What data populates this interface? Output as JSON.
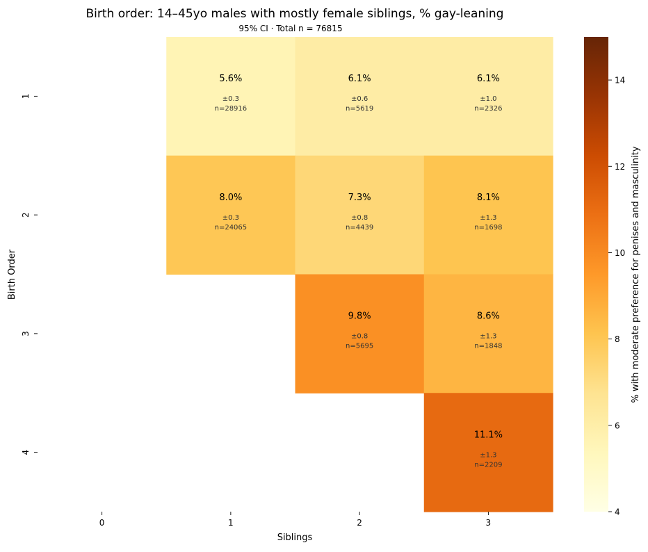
{
  "chart_data": {
    "type": "heatmap",
    "title": "Birth order: 14–45yo males with mostly female siblings, % gay-leaning",
    "subtitle": "95% CI · Total n = 76815",
    "xlabel": "Siblings",
    "ylabel": "Birth Order",
    "x_categories": [
      "0",
      "1",
      "2",
      "3"
    ],
    "y_categories": [
      "1",
      "2",
      "3",
      "4"
    ],
    "colorbar": {
      "label": "% with moderate preference for penises and masculinity",
      "range": [
        4,
        15
      ],
      "ticks": [
        4,
        6,
        8,
        10,
        12,
        14
      ],
      "colormap": "YlOrBr"
    },
    "cells": [
      {
        "birth_order": "1",
        "siblings": "1",
        "value": 5.6,
        "label": "5.6%",
        "ci": "±0.3",
        "n": "n=28916"
      },
      {
        "birth_order": "1",
        "siblings": "2",
        "value": 6.1,
        "label": "6.1%",
        "ci": "±0.6",
        "n": "n=5619"
      },
      {
        "birth_order": "1",
        "siblings": "3",
        "value": 6.1,
        "label": "6.1%",
        "ci": "±1.0",
        "n": "n=2326"
      },
      {
        "birth_order": "2",
        "siblings": "1",
        "value": 8.0,
        "label": "8.0%",
        "ci": "±0.3",
        "n": "n=24065"
      },
      {
        "birth_order": "2",
        "siblings": "2",
        "value": 7.3,
        "label": "7.3%",
        "ci": "±0.8",
        "n": "n=4439"
      },
      {
        "birth_order": "2",
        "siblings": "3",
        "value": 8.1,
        "label": "8.1%",
        "ci": "±1.3",
        "n": "n=1698"
      },
      {
        "birth_order": "3",
        "siblings": "2",
        "value": 9.8,
        "label": "9.8%",
        "ci": "±0.8",
        "n": "n=5695"
      },
      {
        "birth_order": "3",
        "siblings": "3",
        "value": 8.6,
        "label": "8.6%",
        "ci": "±1.3",
        "n": "n=1848"
      },
      {
        "birth_order": "4",
        "siblings": "3",
        "value": 11.1,
        "label": "11.1%",
        "ci": "±1.3",
        "n": "n=2209"
      }
    ]
  }
}
